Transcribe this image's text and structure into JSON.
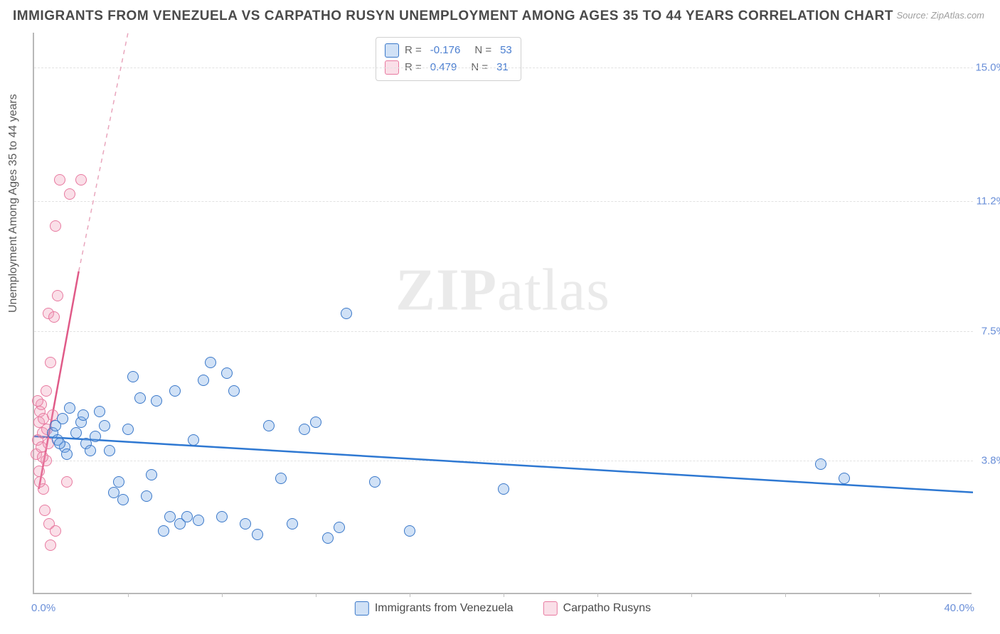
{
  "title": "IMMIGRANTS FROM VENEZUELA VS CARPATHO RUSYN UNEMPLOYMENT AMONG AGES 35 TO 44 YEARS CORRELATION CHART",
  "source": "Source: ZipAtlas.com",
  "y_axis_label": "Unemployment Among Ages 35 to 44 years",
  "watermark_a": "ZIP",
  "watermark_b": "atlas",
  "chart": {
    "type": "scatter",
    "background_color": "#ffffff",
    "grid_color": "#e2e2e2",
    "axis_color": "#b8b8b8",
    "xlim": [
      0.0,
      40.0
    ],
    "ylim": [
      0.0,
      16.0
    ],
    "x_ticks": [
      {
        "v": 0.0,
        "label": "0.0%"
      },
      {
        "v": 40.0,
        "label": "40.0%"
      }
    ],
    "x_minor_ticks": [
      4,
      8,
      12,
      16,
      20,
      24,
      28,
      32,
      36
    ],
    "y_ticks": [
      {
        "v": 3.8,
        "label": "3.8%"
      },
      {
        "v": 7.5,
        "label": "7.5%"
      },
      {
        "v": 11.2,
        "label": "11.2%"
      },
      {
        "v": 15.0,
        "label": "15.0%"
      }
    ],
    "title_fontsize": 19,
    "label_fontsize": 16,
    "tick_fontsize": 15,
    "tick_color": "#6a8fd8",
    "marker_size": 16,
    "marker_opacity": 0.35
  },
  "series": {
    "blue": {
      "label": "Immigrants from Venezuela",
      "color_fill": "rgba(120,170,230,0.35)",
      "color_stroke": "#3a78c9",
      "R": "-0.176",
      "N": "53",
      "trend": {
        "x1": 0.0,
        "y1": 4.5,
        "x2": 40.0,
        "y2": 2.9,
        "color": "#2e78d2",
        "width": 2.5,
        "dash": "none"
      },
      "points": [
        [
          0.8,
          4.6
        ],
        [
          1.0,
          4.4
        ],
        [
          1.2,
          5.0
        ],
        [
          1.3,
          4.2
        ],
        [
          1.5,
          5.3
        ],
        [
          1.8,
          4.6
        ],
        [
          2.0,
          4.9
        ],
        [
          2.2,
          4.3
        ],
        [
          2.4,
          4.1
        ],
        [
          2.6,
          4.5
        ],
        [
          2.8,
          5.2
        ],
        [
          3.0,
          4.8
        ],
        [
          3.2,
          4.1
        ],
        [
          3.4,
          2.9
        ],
        [
          3.6,
          3.2
        ],
        [
          3.8,
          2.7
        ],
        [
          4.0,
          4.7
        ],
        [
          4.2,
          6.2
        ],
        [
          4.5,
          5.6
        ],
        [
          4.8,
          2.8
        ],
        [
          5.0,
          3.4
        ],
        [
          5.2,
          5.5
        ],
        [
          5.5,
          1.8
        ],
        [
          5.8,
          2.2
        ],
        [
          6.0,
          5.8
        ],
        [
          6.2,
          2.0
        ],
        [
          6.5,
          2.2
        ],
        [
          6.8,
          4.4
        ],
        [
          7.0,
          2.1
        ],
        [
          7.2,
          6.1
        ],
        [
          7.5,
          6.6
        ],
        [
          8.0,
          2.2
        ],
        [
          8.2,
          6.3
        ],
        [
          8.5,
          5.8
        ],
        [
          9.0,
          2.0
        ],
        [
          9.5,
          1.7
        ],
        [
          10.0,
          4.8
        ],
        [
          10.5,
          3.3
        ],
        [
          11.0,
          2.0
        ],
        [
          11.5,
          4.7
        ],
        [
          12.0,
          4.9
        ],
        [
          12.5,
          1.6
        ],
        [
          13.0,
          1.9
        ],
        [
          13.3,
          8.0
        ],
        [
          14.5,
          3.2
        ],
        [
          16.0,
          1.8
        ],
        [
          20.0,
          3.0
        ],
        [
          33.5,
          3.7
        ],
        [
          34.5,
          3.3
        ],
        [
          1.4,
          4.0
        ],
        [
          2.1,
          5.1
        ],
        [
          1.1,
          4.3
        ],
        [
          0.9,
          4.8
        ]
      ]
    },
    "pink": {
      "label": "Carpatho Rusyns",
      "color_fill": "rgba(240,150,180,0.30)",
      "color_stroke": "#e87aa0",
      "R": "0.479",
      "N": "31",
      "trend_solid": {
        "x1": 0.2,
        "y1": 3.0,
        "x2": 1.9,
        "y2": 9.2,
        "color": "#e05a88",
        "width": 2.5
      },
      "trend_dash": {
        "x1": 1.9,
        "y1": 9.2,
        "x2": 4.0,
        "y2": 16.0,
        "color": "#e9a6bd",
        "width": 1.5
      },
      "points": [
        [
          0.1,
          4.0
        ],
        [
          0.15,
          4.4
        ],
        [
          0.2,
          3.5
        ],
        [
          0.2,
          4.9
        ],
        [
          0.25,
          5.2
        ],
        [
          0.3,
          5.4
        ],
        [
          0.3,
          4.2
        ],
        [
          0.35,
          4.6
        ],
        [
          0.4,
          5.0
        ],
        [
          0.4,
          3.0
        ],
        [
          0.45,
          2.4
        ],
        [
          0.5,
          5.8
        ],
        [
          0.5,
          3.8
        ],
        [
          0.55,
          4.7
        ],
        [
          0.6,
          4.3
        ],
        [
          0.6,
          8.0
        ],
        [
          0.65,
          2.0
        ],
        [
          0.7,
          6.6
        ],
        [
          0.7,
          1.4
        ],
        [
          0.8,
          5.1
        ],
        [
          0.85,
          7.9
        ],
        [
          0.9,
          10.5
        ],
        [
          0.9,
          1.8
        ],
        [
          1.0,
          8.5
        ],
        [
          1.1,
          11.8
        ],
        [
          1.4,
          3.2
        ],
        [
          1.5,
          11.4
        ],
        [
          2.0,
          11.8
        ],
        [
          0.25,
          3.2
        ],
        [
          0.35,
          3.9
        ],
        [
          0.15,
          5.5
        ]
      ]
    }
  },
  "legend_box": {
    "r_label": "R =",
    "n_label": "N ="
  },
  "x_legend": {
    "items": [
      "blue",
      "pink"
    ]
  }
}
